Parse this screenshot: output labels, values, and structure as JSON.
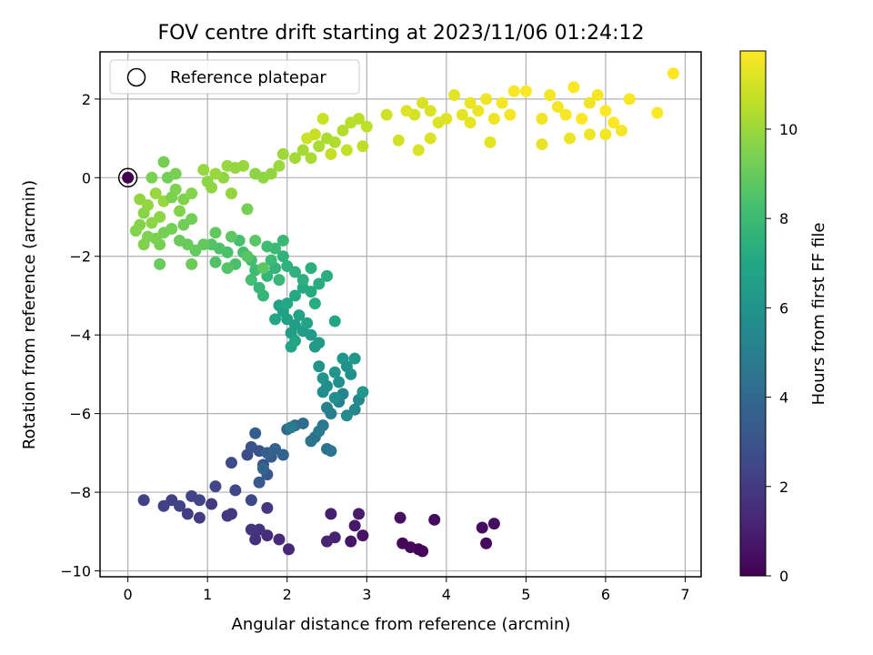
{
  "chart_data": {
    "type": "scatter",
    "title": "FOV centre drift starting at 2023/11/06 01:24:12",
    "xlabel": "Angular distance from reference (arcmin)",
    "ylabel": "Rotation from reference (arcmin)",
    "xlim": [
      -0.35,
      7.2
    ],
    "ylim": [
      -10.15,
      3.2
    ],
    "xticks": [
      0,
      1,
      2,
      3,
      4,
      5,
      6,
      7
    ],
    "yticks": [
      -10,
      -8,
      -6,
      -4,
      -2,
      0,
      2
    ],
    "grid": true,
    "colorbar": {
      "label": "Hours from first FF file",
      "range": [
        0,
        11.75
      ],
      "ticks": [
        0,
        2,
        4,
        6,
        8,
        10
      ],
      "colormap": "viridis"
    },
    "legend": {
      "placement": "top-left",
      "entries": [
        {
          "label": "Reference platepar",
          "marker": "open-circle"
        }
      ]
    },
    "reference_point": {
      "x": 0,
      "y": 0
    },
    "series": [
      {
        "points": [
          [
            3.65,
            -9.45,
            0.1
          ],
          [
            3.7,
            -9.5,
            0.15
          ],
          [
            3.45,
            -9.3,
            0.2
          ],
          [
            3.55,
            -9.4,
            0.25
          ],
          [
            4.5,
            -9.3,
            0.3
          ],
          [
            3.85,
            -8.7,
            0.35
          ],
          [
            4.45,
            -8.9,
            0.4
          ],
          [
            4.6,
            -8.8,
            0.45
          ],
          [
            3.42,
            -8.65,
            0.5
          ],
          [
            2.95,
            -9.1,
            0.6
          ],
          [
            2.8,
            -9.25,
            0.7
          ],
          [
            2.85,
            -8.85,
            0.8
          ],
          [
            2.9,
            -8.55,
            0.9
          ],
          [
            2.55,
            -8.55,
            1.0
          ],
          [
            2.6,
            -9.15,
            1.1
          ],
          [
            2.5,
            -9.25,
            1.2
          ],
          [
            2.02,
            -9.45,
            1.3
          ],
          [
            1.9,
            -9.2,
            1.4
          ],
          [
            1.75,
            -9.1,
            1.5
          ],
          [
            1.6,
            -9.2,
            1.6
          ],
          [
            1.65,
            -8.95,
            1.7
          ],
          [
            1.55,
            -8.95,
            1.75
          ],
          [
            1.75,
            -8.4,
            1.85
          ],
          [
            1.3,
            -8.55,
            1.9
          ],
          [
            1.25,
            -8.6,
            1.95
          ],
          [
            1.05,
            -8.3,
            2.0
          ],
          [
            0.9,
            -8.65,
            2.05
          ],
          [
            0.75,
            -8.55,
            2.1
          ],
          [
            0.55,
            -8.2,
            2.15
          ],
          [
            0.45,
            -8.35,
            2.2
          ],
          [
            0.2,
            -8.2,
            2.25
          ],
          [
            0.65,
            -8.35,
            2.3
          ],
          [
            0.8,
            -8.1,
            2.35
          ],
          [
            0.9,
            -8.2,
            2.4
          ],
          [
            1.1,
            -7.85,
            2.45
          ],
          [
            1.35,
            -7.95,
            2.5
          ],
          [
            1.55,
            -8.2,
            2.6
          ],
          [
            1.3,
            -7.25,
            2.7
          ],
          [
            1.5,
            -7.05,
            2.8
          ],
          [
            1.55,
            -6.85,
            2.9
          ],
          [
            1.65,
            -6.95,
            3.0
          ],
          [
            1.7,
            -7.3,
            3.1
          ],
          [
            1.75,
            -7.55,
            3.2
          ],
          [
            1.65,
            -7.75,
            3.3
          ],
          [
            1.8,
            -7.1,
            3.4
          ],
          [
            1.6,
            -6.5,
            3.5
          ],
          [
            1.85,
            -6.9,
            3.6
          ],
          [
            1.75,
            -7.0,
            3.65
          ],
          [
            1.95,
            -7.05,
            3.7
          ],
          [
            1.7,
            -7.4,
            3.8
          ],
          [
            2.0,
            -6.4,
            4.0
          ],
          [
            2.1,
            -6.3,
            4.1
          ],
          [
            2.2,
            -6.25,
            4.2
          ],
          [
            2.35,
            -6.6,
            4.3
          ],
          [
            2.5,
            -6.9,
            4.4
          ],
          [
            2.3,
            -6.7,
            4.5
          ],
          [
            2.55,
            -6.95,
            4.6
          ],
          [
            2.45,
            -6.3,
            4.7
          ],
          [
            2.4,
            -6.45,
            4.8
          ],
          [
            2.05,
            -6.35,
            4.9
          ],
          [
            2.55,
            -6.0,
            5.0
          ],
          [
            2.5,
            -5.85,
            5.1
          ],
          [
            2.65,
            -5.7,
            5.2
          ],
          [
            2.7,
            -5.5,
            5.3
          ],
          [
            2.85,
            -5.9,
            5.4
          ],
          [
            2.9,
            -5.65,
            5.5
          ],
          [
            2.75,
            -6.05,
            5.6
          ],
          [
            2.45,
            -5.45,
            5.7
          ],
          [
            2.5,
            -5.3,
            5.75
          ],
          [
            2.6,
            -5.6,
            5.8
          ],
          [
            2.65,
            -5.2,
            5.85
          ],
          [
            2.8,
            -5.0,
            5.9
          ],
          [
            2.75,
            -4.8,
            5.95
          ],
          [
            2.4,
            -4.8,
            6.0
          ],
          [
            2.45,
            -5.1,
            6.05
          ],
          [
            2.6,
            -4.95,
            6.1
          ],
          [
            2.7,
            -4.6,
            6.15
          ],
          [
            2.85,
            -4.6,
            6.2
          ],
          [
            2.95,
            -5.45,
            6.25
          ],
          [
            2.35,
            -4.3,
            6.3
          ],
          [
            2.4,
            -4.2,
            6.35
          ],
          [
            2.3,
            -4.0,
            6.4
          ],
          [
            2.2,
            -3.9,
            6.45
          ],
          [
            2.1,
            -3.75,
            6.5
          ],
          [
            2.05,
            -3.95,
            6.55
          ],
          [
            2.0,
            -3.6,
            6.6
          ],
          [
            1.95,
            -3.4,
            6.65
          ],
          [
            1.9,
            -3.25,
            6.7
          ],
          [
            2.15,
            -3.5,
            6.75
          ],
          [
            2.25,
            -3.7,
            6.8
          ],
          [
            2.1,
            -4.15,
            6.85
          ],
          [
            2.05,
            -4.3,
            6.9
          ],
          [
            1.85,
            -3.6,
            6.95
          ],
          [
            2.6,
            -3.65,
            7.0
          ],
          [
            2.0,
            -3.2,
            7.05
          ],
          [
            2.1,
            -3.0,
            7.1
          ],
          [
            2.2,
            -2.8,
            7.15
          ],
          [
            2.3,
            -2.9,
            7.2
          ],
          [
            2.35,
            -3.2,
            7.25
          ],
          [
            2.4,
            -2.7,
            7.3
          ],
          [
            2.5,
            -2.5,
            7.35
          ],
          [
            2.3,
            -2.3,
            7.4
          ],
          [
            2.2,
            -2.6,
            7.45
          ],
          [
            2.1,
            -2.4,
            7.5
          ],
          [
            2.0,
            -2.25,
            7.55
          ],
          [
            1.95,
            -2.0,
            7.6
          ],
          [
            1.85,
            -2.3,
            7.65
          ],
          [
            1.75,
            -2.5,
            7.7
          ],
          [
            1.7,
            -3.0,
            7.75
          ],
          [
            1.65,
            -2.8,
            7.8
          ],
          [
            1.9,
            -2.6,
            7.85
          ],
          [
            1.95,
            -1.6,
            7.9
          ],
          [
            1.85,
            -1.8,
            7.95
          ],
          [
            1.8,
            -2.1,
            8.0
          ],
          [
            1.75,
            -1.75,
            8.05
          ],
          [
            1.6,
            -2.35,
            8.1
          ],
          [
            1.55,
            -2.6,
            8.15
          ],
          [
            1.55,
            -2.1,
            8.2
          ],
          [
            1.45,
            -1.9,
            8.25
          ],
          [
            1.4,
            -1.6,
            8.3
          ],
          [
            1.35,
            -2.2,
            8.35
          ],
          [
            1.25,
            -1.9,
            8.4
          ],
          [
            1.15,
            -1.8,
            8.45
          ],
          [
            1.1,
            -2.15,
            8.5
          ],
          [
            1.05,
            -1.7,
            8.55
          ],
          [
            1.25,
            -2.3,
            8.6
          ],
          [
            1.5,
            -2.0,
            8.65
          ],
          [
            1.6,
            -1.6,
            8.7
          ],
          [
            1.7,
            -2.3,
            8.75
          ],
          [
            1.3,
            -1.5,
            8.8
          ],
          [
            1.1,
            -1.4,
            8.85
          ],
          [
            0.95,
            -1.7,
            8.9
          ],
          [
            0.85,
            -1.85,
            8.95
          ],
          [
            0.75,
            -1.7,
            9.0
          ],
          [
            0.65,
            -1.6,
            9.05
          ],
          [
            0.8,
            -2.2,
            9.1
          ],
          [
            0.7,
            -1.2,
            9.15
          ],
          [
            0.8,
            -1.05,
            9.2
          ],
          [
            0.55,
            -1.3,
            9.25
          ],
          [
            0.45,
            -1.4,
            9.3
          ],
          [
            0.4,
            -1.7,
            9.35
          ],
          [
            0.35,
            -1.55,
            9.4
          ],
          [
            0.25,
            -1.5,
            9.45
          ],
          [
            0.2,
            -1.7,
            9.5
          ],
          [
            0.15,
            -1.2,
            9.55
          ],
          [
            0.1,
            -1.35,
            9.6
          ],
          [
            0.2,
            -0.9,
            9.65
          ],
          [
            0.3,
            -1.15,
            9.7
          ],
          [
            0.4,
            -1.0,
            9.75
          ],
          [
            0.15,
            -0.55,
            9.8
          ],
          [
            0.25,
            -0.7,
            9.85
          ],
          [
            0.35,
            -0.4,
            9.9
          ],
          [
            0.45,
            -0.6,
            9.95
          ],
          [
            0.55,
            -0.5,
            9.4
          ],
          [
            0.6,
            -0.3,
            9.45
          ],
          [
            0.7,
            -0.55,
            9.5
          ],
          [
            0.8,
            -0.4,
            9.55
          ],
          [
            0.65,
            -0.85,
            9.6
          ],
          [
            0.4,
            -2.2,
            9.0
          ],
          [
            1.0,
            -0.1,
            9.7
          ],
          [
            1.05,
            -0.25,
            9.75
          ],
          [
            1.2,
            0.0,
            9.8
          ],
          [
            1.3,
            -0.4,
            9.85
          ],
          [
            0.95,
            0.2,
            9.9
          ],
          [
            1.1,
            0.1,
            9.95
          ],
          [
            1.5,
            -0.8,
            9.3
          ],
          [
            1.6,
            0.1,
            9.7
          ],
          [
            1.7,
            0.0,
            9.75
          ],
          [
            1.8,
            0.1,
            9.8
          ],
          [
            1.35,
            0.25,
            9.85
          ],
          [
            1.25,
            0.3,
            9.9
          ],
          [
            1.45,
            0.3,
            9.95
          ],
          [
            0.5,
            0.0,
            9.2
          ],
          [
            0.45,
            0.4,
            9.3
          ],
          [
            0.6,
            0.1,
            9.35
          ],
          [
            0.3,
            0.0,
            9.4
          ],
          [
            1.9,
            0.3,
            10.0
          ],
          [
            1.95,
            0.6,
            10.05
          ],
          [
            2.1,
            0.5,
            10.1
          ],
          [
            2.2,
            0.7,
            10.15
          ],
          [
            2.3,
            0.5,
            10.2
          ],
          [
            2.4,
            0.8,
            10.25
          ],
          [
            2.5,
            1.0,
            10.3
          ],
          [
            2.6,
            0.9,
            10.35
          ],
          [
            2.7,
            1.2,
            10.4
          ],
          [
            2.8,
            1.4,
            10.45
          ],
          [
            2.9,
            1.5,
            10.5
          ],
          [
            3.0,
            1.3,
            10.55
          ],
          [
            2.95,
            0.8,
            10.6
          ],
          [
            2.75,
            0.7,
            10.65
          ],
          [
            2.55,
            0.6,
            10.7
          ],
          [
            2.35,
            1.1,
            10.75
          ],
          [
            2.45,
            1.5,
            10.8
          ],
          [
            2.25,
            1.0,
            10.85
          ],
          [
            3.25,
            1.6,
            10.9
          ],
          [
            3.4,
            0.95,
            10.95
          ],
          [
            3.6,
            1.6,
            11.0
          ],
          [
            3.7,
            1.9,
            11.05
          ],
          [
            3.8,
            1.7,
            11.1
          ],
          [
            3.9,
            1.4,
            11.15
          ],
          [
            4.0,
            1.5,
            11.2
          ],
          [
            4.1,
            2.1,
            11.25
          ],
          [
            4.2,
            1.6,
            11.3
          ],
          [
            4.3,
            1.4,
            11.35
          ],
          [
            4.4,
            1.7,
            11.4
          ],
          [
            4.5,
            2.0,
            11.45
          ],
          [
            4.6,
            1.5,
            11.5
          ],
          [
            4.7,
            1.9,
            11.55
          ],
          [
            4.8,
            1.6,
            11.6
          ],
          [
            4.85,
            2.2,
            11.65
          ],
          [
            5.0,
            2.2,
            11.7
          ],
          [
            5.2,
            1.5,
            11.5
          ],
          [
            5.3,
            2.1,
            11.55
          ],
          [
            5.4,
            1.8,
            11.6
          ],
          [
            5.5,
            1.6,
            11.65
          ],
          [
            5.6,
            2.3,
            11.7
          ],
          [
            5.7,
            1.5,
            11.75
          ],
          [
            5.8,
            1.9,
            11.5
          ],
          [
            5.9,
            2.1,
            11.6
          ],
          [
            6.0,
            1.7,
            11.7
          ],
          [
            6.1,
            1.4,
            11.75
          ],
          [
            6.2,
            1.2,
            11.6
          ],
          [
            6.3,
            2.0,
            11.65
          ],
          [
            6.65,
            1.65,
            11.7
          ],
          [
            6.85,
            2.65,
            11.75
          ],
          [
            6.0,
            1.1,
            11.55
          ],
          [
            5.8,
            1.1,
            11.45
          ],
          [
            5.55,
            1.0,
            11.4
          ],
          [
            5.2,
            0.85,
            11.35
          ],
          [
            4.55,
            0.9,
            11.3
          ],
          [
            3.65,
            0.7,
            11.1
          ],
          [
            3.5,
            1.7,
            11.2
          ],
          [
            3.8,
            1.0,
            11.15
          ],
          [
            4.3,
            1.9,
            11.4
          ]
        ]
      }
    ]
  }
}
